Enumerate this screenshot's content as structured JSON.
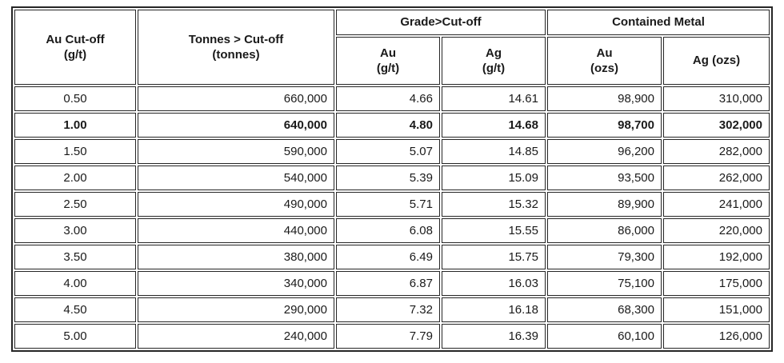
{
  "colors": {
    "border": "#262626",
    "text": "#1a1a1a",
    "background": "#ffffff"
  },
  "chart_data": {
    "type": "table",
    "title": "Au cut-off grade / tonnage / grade / contained metal table",
    "header": {
      "au_cutoff": [
        "Au Cut-off",
        "(g/t)"
      ],
      "tonnes": [
        "Tonnes > Cut-off",
        "(tonnes)"
      ],
      "grade_group": "Grade>Cut-off",
      "metal_group": "Contained Metal",
      "grade_au": [
        "Au",
        "(g/t)"
      ],
      "grade_ag": [
        "Ag",
        "(g/t)"
      ],
      "metal_au": [
        "Au",
        "(ozs)"
      ],
      "metal_ag": "Ag (ozs)"
    },
    "highlighted_row_index": 1,
    "rows": [
      {
        "au_cutoff": "0.50",
        "tonnes": "660,000",
        "grade_au": "4.66",
        "grade_ag": "14.61",
        "metal_au": "98,900",
        "metal_ag": "310,000",
        "bold": false
      },
      {
        "au_cutoff": "1.00",
        "tonnes": "640,000",
        "grade_au": "4.80",
        "grade_ag": "14.68",
        "metal_au": "98,700",
        "metal_ag": "302,000",
        "bold": true
      },
      {
        "au_cutoff": "1.50",
        "tonnes": "590,000",
        "grade_au": "5.07",
        "grade_ag": "14.85",
        "metal_au": "96,200",
        "metal_ag": "282,000",
        "bold": false
      },
      {
        "au_cutoff": "2.00",
        "tonnes": "540,000",
        "grade_au": "5.39",
        "grade_ag": "15.09",
        "metal_au": "93,500",
        "metal_ag": "262,000",
        "bold": false
      },
      {
        "au_cutoff": "2.50",
        "tonnes": "490,000",
        "grade_au": "5.71",
        "grade_ag": "15.32",
        "metal_au": "89,900",
        "metal_ag": "241,000",
        "bold": false
      },
      {
        "au_cutoff": "3.00",
        "tonnes": "440,000",
        "grade_au": "6.08",
        "grade_ag": "15.55",
        "metal_au": "86,000",
        "metal_ag": "220,000",
        "bold": false
      },
      {
        "au_cutoff": "3.50",
        "tonnes": "380,000",
        "grade_au": "6.49",
        "grade_ag": "15.75",
        "metal_au": "79,300",
        "metal_ag": "192,000",
        "bold": false
      },
      {
        "au_cutoff": "4.00",
        "tonnes": "340,000",
        "grade_au": "6.87",
        "grade_ag": "16.03",
        "metal_au": "75,100",
        "metal_ag": "175,000",
        "bold": false
      },
      {
        "au_cutoff": "4.50",
        "tonnes": "290,000",
        "grade_au": "7.32",
        "grade_ag": "16.18",
        "metal_au": "68,300",
        "metal_ag": "151,000",
        "bold": false
      },
      {
        "au_cutoff": "5.00",
        "tonnes": "240,000",
        "grade_au": "7.79",
        "grade_ag": "16.39",
        "metal_au": "60,100",
        "metal_ag": "126,000",
        "bold": false
      }
    ]
  }
}
